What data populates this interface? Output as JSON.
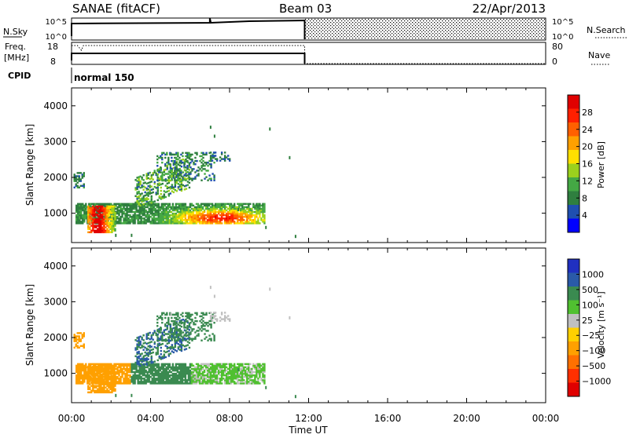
{
  "header": {
    "title": "SANAE (fitACF)",
    "beam": "Beam 03",
    "date": "22/Apr/2013"
  },
  "aux_panels": {
    "nsky_label": "N.Sky",
    "nsky_ticks": [
      "10^5",
      "10^0"
    ],
    "nsearch_label": "N.Search",
    "nsearch_ticks": [
      "10^5",
      "10^0"
    ],
    "freq_label": "Freq.",
    "freq_unit": "[MHz]",
    "freq_ticks": [
      "18",
      "8"
    ],
    "nave_label": "Nave",
    "nave_ticks": [
      "80",
      "0"
    ],
    "cpid_label": "CPID",
    "cpid_value": "normal 150"
  },
  "colors": {
    "power": [
      "#0000ff",
      "#1f4fb0",
      "#2f7f3f",
      "#44a844",
      "#9bd11d",
      "#ffe000",
      "#ffa000",
      "#ff6000",
      "#ff2000",
      "#e00000"
    ],
    "velocity": [
      "#2030c0",
      "#2a5aa8",
      "#3a8a50",
      "#50c030",
      "#c0c0c0",
      "#ffd000",
      "#ffa000",
      "#ff7000",
      "#ff3000",
      "#e00000"
    ]
  },
  "chart_data": [
    {
      "type": "heatmap",
      "name": "power",
      "ylabel": "Slant Range [km]",
      "xlim_hours": [
        0,
        24
      ],
      "ylim_km": [
        180,
        4500
      ],
      "yticks": [
        "4000",
        "3000",
        "2000",
        "1000"
      ],
      "colorbar_label": "Power [dB]",
      "colorbar_ticks": [
        "28",
        "24",
        "20",
        "16",
        "12",
        "8",
        "4"
      ],
      "colorbar_range": [
        0,
        30
      ]
    },
    {
      "type": "heatmap",
      "name": "velocity",
      "ylabel": "Slant Range [km]",
      "xlabel": "Time UT",
      "xlim_hours": [
        0,
        24
      ],
      "ylim_km": [
        180,
        4500
      ],
      "xticks": [
        "00:00",
        "04:00",
        "08:00",
        "12:00",
        "16:00",
        "20:00",
        "00:00"
      ],
      "yticks": [
        "4000",
        "3000",
        "2000",
        "1000"
      ],
      "colorbar_label": "Velocity [m s⁻¹]",
      "colorbar_ticks": [
        "1000",
        "500",
        "100",
        "25",
        "−25",
        "−100",
        "−500",
        "−1000"
      ]
    }
  ]
}
